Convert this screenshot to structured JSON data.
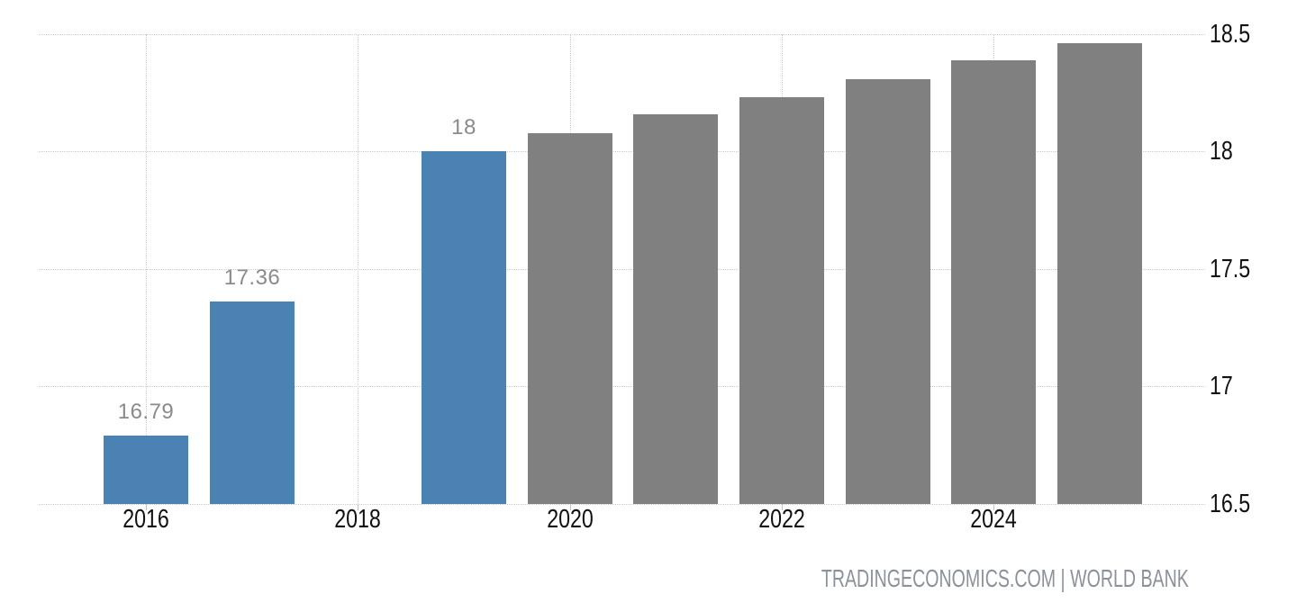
{
  "chart_data": {
    "type": "bar",
    "title": "",
    "xlabel": "",
    "ylabel": "",
    "ylim": [
      16.5,
      18.5
    ],
    "grid": "dotted",
    "legend_position": "none",
    "y_axis_side": "right",
    "source_attribution": "TRADINGECONOMICS.COM | WORLD BANK",
    "x_axis_ticks": [
      {
        "label": "2016",
        "year": 2016
      },
      {
        "label": "2018",
        "year": 2018
      },
      {
        "label": "2020",
        "year": 2020
      },
      {
        "label": "2022",
        "year": 2022
      },
      {
        "label": "2024",
        "year": 2024
      }
    ],
    "y_axis_ticks": [
      {
        "label": "16.5",
        "value": 16.5
      },
      {
        "label": "17",
        "value": 17
      },
      {
        "label": "17.5",
        "value": 17.5
      },
      {
        "label": "18",
        "value": 18
      },
      {
        "label": "18.5",
        "value": 18.5
      }
    ],
    "bars": [
      {
        "year": 2016,
        "value": 16.79,
        "label": "16.79",
        "kind": "actual"
      },
      {
        "year": 2017,
        "value": 17.36,
        "label": "17.36",
        "kind": "actual"
      },
      {
        "year": 2019,
        "value": 18,
        "label": "18",
        "kind": "actual"
      },
      {
        "year": 2020,
        "value": 18.08,
        "label": "",
        "kind": "forecast"
      },
      {
        "year": 2021,
        "value": 18.16,
        "label": "",
        "kind": "forecast"
      },
      {
        "year": 2022,
        "value": 18.23,
        "label": "",
        "kind": "forecast"
      },
      {
        "year": 2023,
        "value": 18.31,
        "label": "",
        "kind": "forecast"
      },
      {
        "year": 2024,
        "value": 18.39,
        "label": "",
        "kind": "forecast"
      },
      {
        "year": 2025,
        "value": 18.46,
        "label": "",
        "kind": "forecast"
      }
    ],
    "colors": {
      "actual_bar": "#4a82b4",
      "forecast_bar": "#808080",
      "grid": "#cccccc",
      "value_label": "#8b8b8b",
      "axis_label": "#111111",
      "source_text": "#8b929b"
    }
  }
}
